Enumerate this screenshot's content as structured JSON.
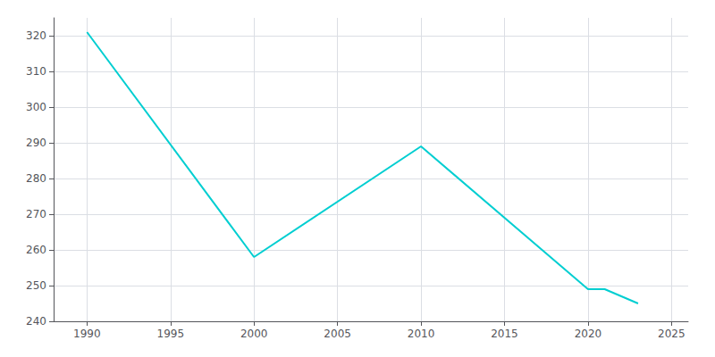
{
  "chart_data": {
    "type": "line",
    "x": [
      1990,
      2000,
      2010,
      2020,
      2021,
      2023
    ],
    "values": [
      321,
      258,
      289,
      249,
      249,
      245
    ],
    "color": "#00CED1",
    "xlim": [
      1988,
      2026
    ],
    "xticks": [
      1990,
      1995,
      2000,
      2005,
      2010,
      2015,
      2020,
      2025
    ],
    "ylim": [
      240,
      325
    ],
    "yticks": [
      240,
      250,
      260,
      270,
      280,
      290,
      300,
      310,
      320
    ],
    "grid": true
  }
}
